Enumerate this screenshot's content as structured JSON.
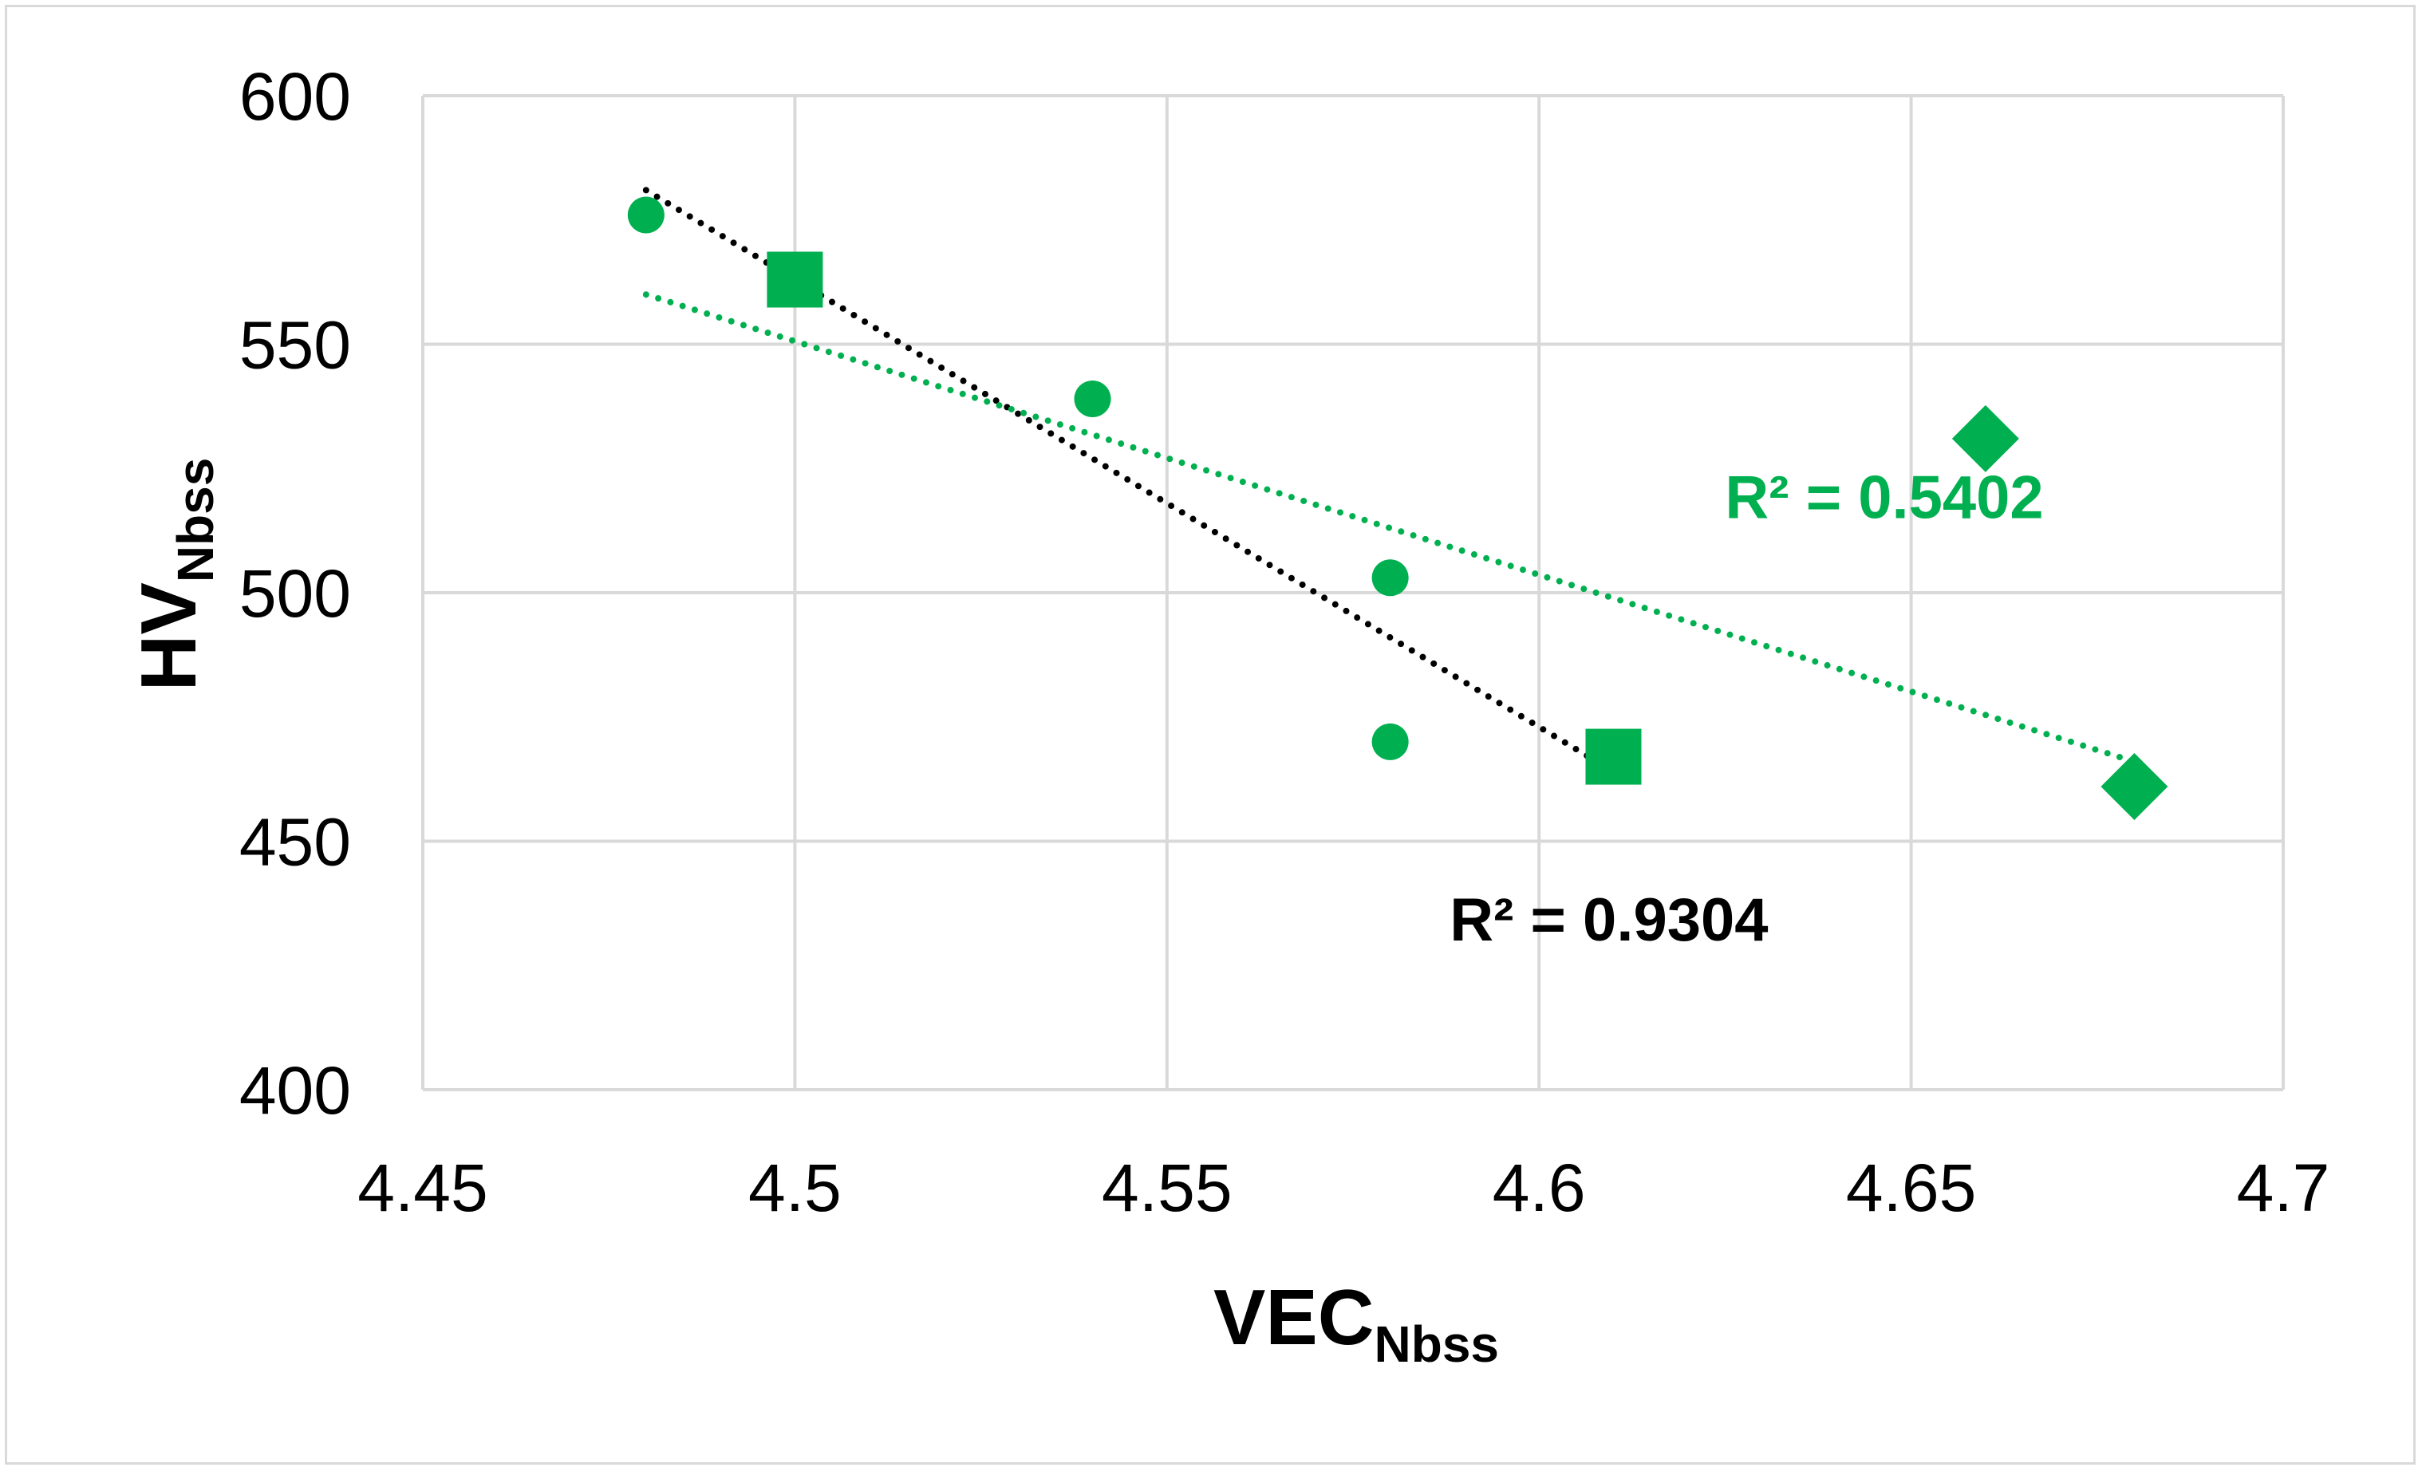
{
  "colors": {
    "marker": "#00b050",
    "trend_green": "#00b050",
    "trend_black": "#000000",
    "grid": "#d9d9d9"
  },
  "chart_data": {
    "type": "scatter",
    "title": "",
    "xlabel": {
      "main": "VEC",
      "sub": "Nbss"
    },
    "ylabel": {
      "main": "HV",
      "sub": "Nbss"
    },
    "xlim": [
      4.45,
      4.7
    ],
    "ylim": [
      400,
      600
    ],
    "xticks": [
      "4.45",
      "4.5",
      "4.55",
      "4.6",
      "4.65",
      "4.7"
    ],
    "yticks": [
      "400",
      "450",
      "500",
      "550",
      "600"
    ],
    "grid": true,
    "series": [
      {
        "name": "circles",
        "marker": "circle",
        "color": "#00b050",
        "x": [
          4.48,
          4.54,
          4.58,
          4.58
        ],
        "y": [
          576,
          539,
          503,
          470
        ]
      },
      {
        "name": "squares",
        "marker": "square",
        "color": "#00b050",
        "x": [
          4.5,
          4.61
        ],
        "y": [
          563,
          467
        ]
      },
      {
        "name": "diamonds",
        "marker": "diamond",
        "color": "#00b050",
        "x": [
          4.66,
          4.68
        ],
        "y": [
          531,
          461
        ]
      }
    ],
    "trendlines": [
      {
        "name": "black-trend",
        "style": "dotted",
        "color": "#000000",
        "x": [
          4.48,
          4.61
        ],
        "y": [
          581,
          464
        ],
        "label": "R² = 0.9304",
        "label_x": 4.588,
        "label_y": 430
      },
      {
        "name": "green-trend",
        "style": "dotted",
        "color": "#00b050",
        "x": [
          4.48,
          4.68
        ],
        "y": [
          560,
          466
        ],
        "label": "R² = 0.5402",
        "label_x": 4.625,
        "label_y": 515
      }
    ]
  }
}
